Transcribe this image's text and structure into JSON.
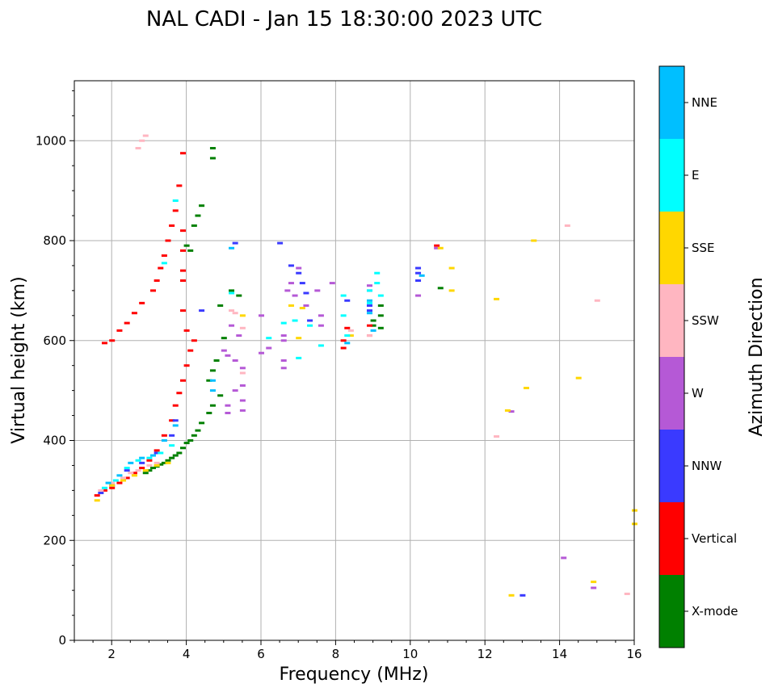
{
  "chart_data": {
    "type": "scatter",
    "title": "NAL CADI - Jan 15 18:30:00 2023 UTC",
    "xlabel": "Frequency (MHz)",
    "ylabel": "Virtual height (km)",
    "xlim": [
      1,
      16
    ],
    "ylim": [
      0,
      1120
    ],
    "xticks": [
      2,
      4,
      6,
      8,
      10,
      12,
      14,
      16
    ],
    "yticks": [
      0,
      200,
      400,
      600,
      800,
      1000
    ],
    "grid": true,
    "colorbar": {
      "label": "Azimuth Direction",
      "entries": [
        {
          "name": "X-mode",
          "color": "#008000"
        },
        {
          "name": "Vertical",
          "color": "#ff0000"
        },
        {
          "name": "NNW",
          "color": "#3a3aff"
        },
        {
          "name": "W",
          "color": "#b559d6"
        },
        {
          "name": "SSW",
          "color": "#ffb6c1"
        },
        {
          "name": "SSE",
          "color": "#ffd700"
        },
        {
          "name": "E",
          "color": "#00ffff"
        },
        {
          "name": "NNE",
          "color": "#00bfff"
        }
      ]
    },
    "series": [
      {
        "name": "X-mode",
        "points": [
          [
            2.9,
            335
          ],
          [
            3.0,
            340
          ],
          [
            3.1,
            345
          ],
          [
            3.2,
            348
          ],
          [
            3.3,
            352
          ],
          [
            3.4,
            355
          ],
          [
            3.5,
            360
          ],
          [
            3.6,
            365
          ],
          [
            3.7,
            370
          ],
          [
            3.8,
            375
          ],
          [
            3.9,
            385
          ],
          [
            4.0,
            395
          ],
          [
            4.1,
            400
          ],
          [
            4.2,
            410
          ],
          [
            4.3,
            420
          ],
          [
            4.4,
            435
          ],
          [
            4.6,
            455
          ],
          [
            4.7,
            470
          ],
          [
            4.9,
            490
          ],
          [
            5.2,
            700
          ],
          [
            5.4,
            690
          ],
          [
            4.6,
            520
          ],
          [
            4.7,
            540
          ],
          [
            4.8,
            560
          ],
          [
            4.9,
            670
          ],
          [
            5.0,
            605
          ],
          [
            4.2,
            830
          ],
          [
            4.3,
            850
          ],
          [
            4.4,
            870
          ],
          [
            4.7,
            985
          ],
          [
            4.7,
            965
          ],
          [
            4.1,
            780
          ],
          [
            4.0,
            790
          ],
          [
            9.0,
            640
          ],
          [
            9.0,
            630
          ],
          [
            9.2,
            670
          ],
          [
            9.2,
            650
          ],
          [
            9.2,
            625
          ],
          [
            10.8,
            705
          ]
        ]
      },
      {
        "name": "Vertical",
        "points": [
          [
            1.6,
            290
          ],
          [
            1.8,
            300
          ],
          [
            2.0,
            305
          ],
          [
            2.2,
            315
          ],
          [
            2.4,
            325
          ],
          [
            2.6,
            335
          ],
          [
            2.8,
            345
          ],
          [
            3.0,
            360
          ],
          [
            3.2,
            380
          ],
          [
            3.4,
            410
          ],
          [
            3.6,
            440
          ],
          [
            3.7,
            470
          ],
          [
            3.8,
            495
          ],
          [
            3.9,
            520
          ],
          [
            4.0,
            550
          ],
          [
            4.1,
            580
          ],
          [
            4.2,
            600
          ],
          [
            4.0,
            620
          ],
          [
            3.9,
            660
          ],
          [
            3.9,
            740
          ],
          [
            3.9,
            720
          ],
          [
            3.9,
            780
          ],
          [
            3.9,
            820
          ],
          [
            3.9,
            975
          ],
          [
            3.8,
            910
          ],
          [
            3.7,
            860
          ],
          [
            3.6,
            830
          ],
          [
            3.5,
            800
          ],
          [
            3.4,
            770
          ],
          [
            3.3,
            745
          ],
          [
            3.2,
            720
          ],
          [
            3.1,
            700
          ],
          [
            2.8,
            675
          ],
          [
            2.6,
            655
          ],
          [
            2.4,
            635
          ],
          [
            2.2,
            620
          ],
          [
            2.0,
            600
          ],
          [
            1.8,
            595
          ],
          [
            8.2,
            600
          ],
          [
            8.2,
            585
          ],
          [
            8.3,
            625
          ],
          [
            8.9,
            610
          ],
          [
            8.9,
            630
          ],
          [
            10.7,
            790
          ]
        ]
      },
      {
        "name": "NNW",
        "points": [
          [
            1.7,
            295
          ],
          [
            2.0,
            310
          ],
          [
            2.4,
            340
          ],
          [
            2.8,
            355
          ],
          [
            3.2,
            375
          ],
          [
            3.6,
            410
          ],
          [
            3.7,
            440
          ],
          [
            4.4,
            660
          ],
          [
            5.3,
            795
          ],
          [
            6.5,
            795
          ],
          [
            6.8,
            750
          ],
          [
            7.0,
            735
          ],
          [
            7.1,
            715
          ],
          [
            7.2,
            695
          ],
          [
            7.3,
            640
          ],
          [
            8.3,
            680
          ],
          [
            8.9,
            670
          ],
          [
            8.9,
            660
          ],
          [
            10.2,
            745
          ],
          [
            10.2,
            735
          ],
          [
            10.2,
            720
          ],
          [
            13.0,
            90
          ]
        ]
      },
      {
        "name": "W",
        "points": [
          [
            5.1,
            455
          ],
          [
            5.1,
            470
          ],
          [
            5.3,
            500
          ],
          [
            5.5,
            510
          ],
          [
            5.5,
            480
          ],
          [
            5.5,
            460
          ],
          [
            5.5,
            545
          ],
          [
            5.3,
            560
          ],
          [
            5.1,
            570
          ],
          [
            5.0,
            580
          ],
          [
            5.2,
            630
          ],
          [
            5.4,
            610
          ],
          [
            6.0,
            575
          ],
          [
            6.0,
            650
          ],
          [
            6.2,
            585
          ],
          [
            6.6,
            600
          ],
          [
            6.6,
            610
          ],
          [
            6.6,
            545
          ],
          [
            6.6,
            560
          ],
          [
            6.7,
            700
          ],
          [
            6.8,
            715
          ],
          [
            6.9,
            690
          ],
          [
            7.0,
            745
          ],
          [
            7.2,
            670
          ],
          [
            7.5,
            700
          ],
          [
            7.6,
            650
          ],
          [
            7.6,
            630
          ],
          [
            7.9,
            715
          ],
          [
            8.9,
            710
          ],
          [
            8.9,
            700
          ],
          [
            10.2,
            690
          ],
          [
            10.7,
            785
          ],
          [
            12.7,
            458
          ],
          [
            14.1,
            165
          ],
          [
            14.9,
            105
          ]
        ]
      },
      {
        "name": "SSW",
        "points": [
          [
            1.7,
            300
          ],
          [
            2.0,
            315
          ],
          [
            2.3,
            325
          ],
          [
            2.5,
            335
          ],
          [
            2.7,
            340
          ],
          [
            3.0,
            350
          ],
          [
            3.2,
            355
          ],
          [
            5.2,
            660
          ],
          [
            5.3,
            655
          ],
          [
            5.5,
            625
          ],
          [
            5.5,
            535
          ],
          [
            2.7,
            985
          ],
          [
            2.8,
            1000
          ],
          [
            2.9,
            1010
          ],
          [
            8.4,
            620
          ],
          [
            8.9,
            610
          ],
          [
            12.3,
            408
          ],
          [
            14.2,
            830
          ],
          [
            15.0,
            680
          ],
          [
            15.8,
            93
          ]
        ]
      },
      {
        "name": "SSE",
        "points": [
          [
            1.6,
            280
          ],
          [
            2.0,
            310
          ],
          [
            2.3,
            320
          ],
          [
            2.6,
            330
          ],
          [
            2.9,
            340
          ],
          [
            3.2,
            350
          ],
          [
            3.5,
            355
          ],
          [
            5.5,
            650
          ],
          [
            6.8,
            670
          ],
          [
            7.0,
            605
          ],
          [
            7.1,
            665
          ],
          [
            8.4,
            610
          ],
          [
            10.8,
            785
          ],
          [
            11.1,
            745
          ],
          [
            11.1,
            700
          ],
          [
            12.3,
            683
          ],
          [
            12.6,
            460
          ],
          [
            12.7,
            90
          ],
          [
            13.1,
            505
          ],
          [
            13.3,
            800
          ],
          [
            14.5,
            525
          ],
          [
            14.9,
            117
          ],
          [
            16.0,
            260
          ],
          [
            16.0,
            233
          ]
        ]
      },
      {
        "name": "E",
        "points": [
          [
            1.8,
            305
          ],
          [
            2.1,
            320
          ],
          [
            2.4,
            345
          ],
          [
            2.7,
            360
          ],
          [
            3.0,
            365
          ],
          [
            3.3,
            375
          ],
          [
            3.6,
            390
          ],
          [
            3.7,
            880
          ],
          [
            3.4,
            755
          ],
          [
            5.2,
            695
          ],
          [
            6.2,
            605
          ],
          [
            6.6,
            635
          ],
          [
            6.9,
            640
          ],
          [
            7.0,
            565
          ],
          [
            7.3,
            630
          ],
          [
            7.6,
            590
          ],
          [
            8.2,
            690
          ],
          [
            8.2,
            650
          ],
          [
            8.3,
            610
          ],
          [
            8.9,
            700
          ],
          [
            8.9,
            675
          ],
          [
            9.1,
            735
          ],
          [
            9.1,
            715
          ],
          [
            9.2,
            690
          ]
        ]
      },
      {
        "name": "NNE",
        "points": [
          [
            1.9,
            315
          ],
          [
            2.2,
            330
          ],
          [
            2.5,
            355
          ],
          [
            2.8,
            365
          ],
          [
            3.1,
            370
          ],
          [
            3.4,
            400
          ],
          [
            3.7,
            430
          ],
          [
            4.7,
            520
          ],
          [
            4.7,
            500
          ],
          [
            5.2,
            785
          ],
          [
            8.3,
            595
          ],
          [
            8.9,
            680
          ],
          [
            8.9,
            655
          ],
          [
            9.0,
            620
          ],
          [
            10.3,
            730
          ]
        ]
      }
    ]
  }
}
